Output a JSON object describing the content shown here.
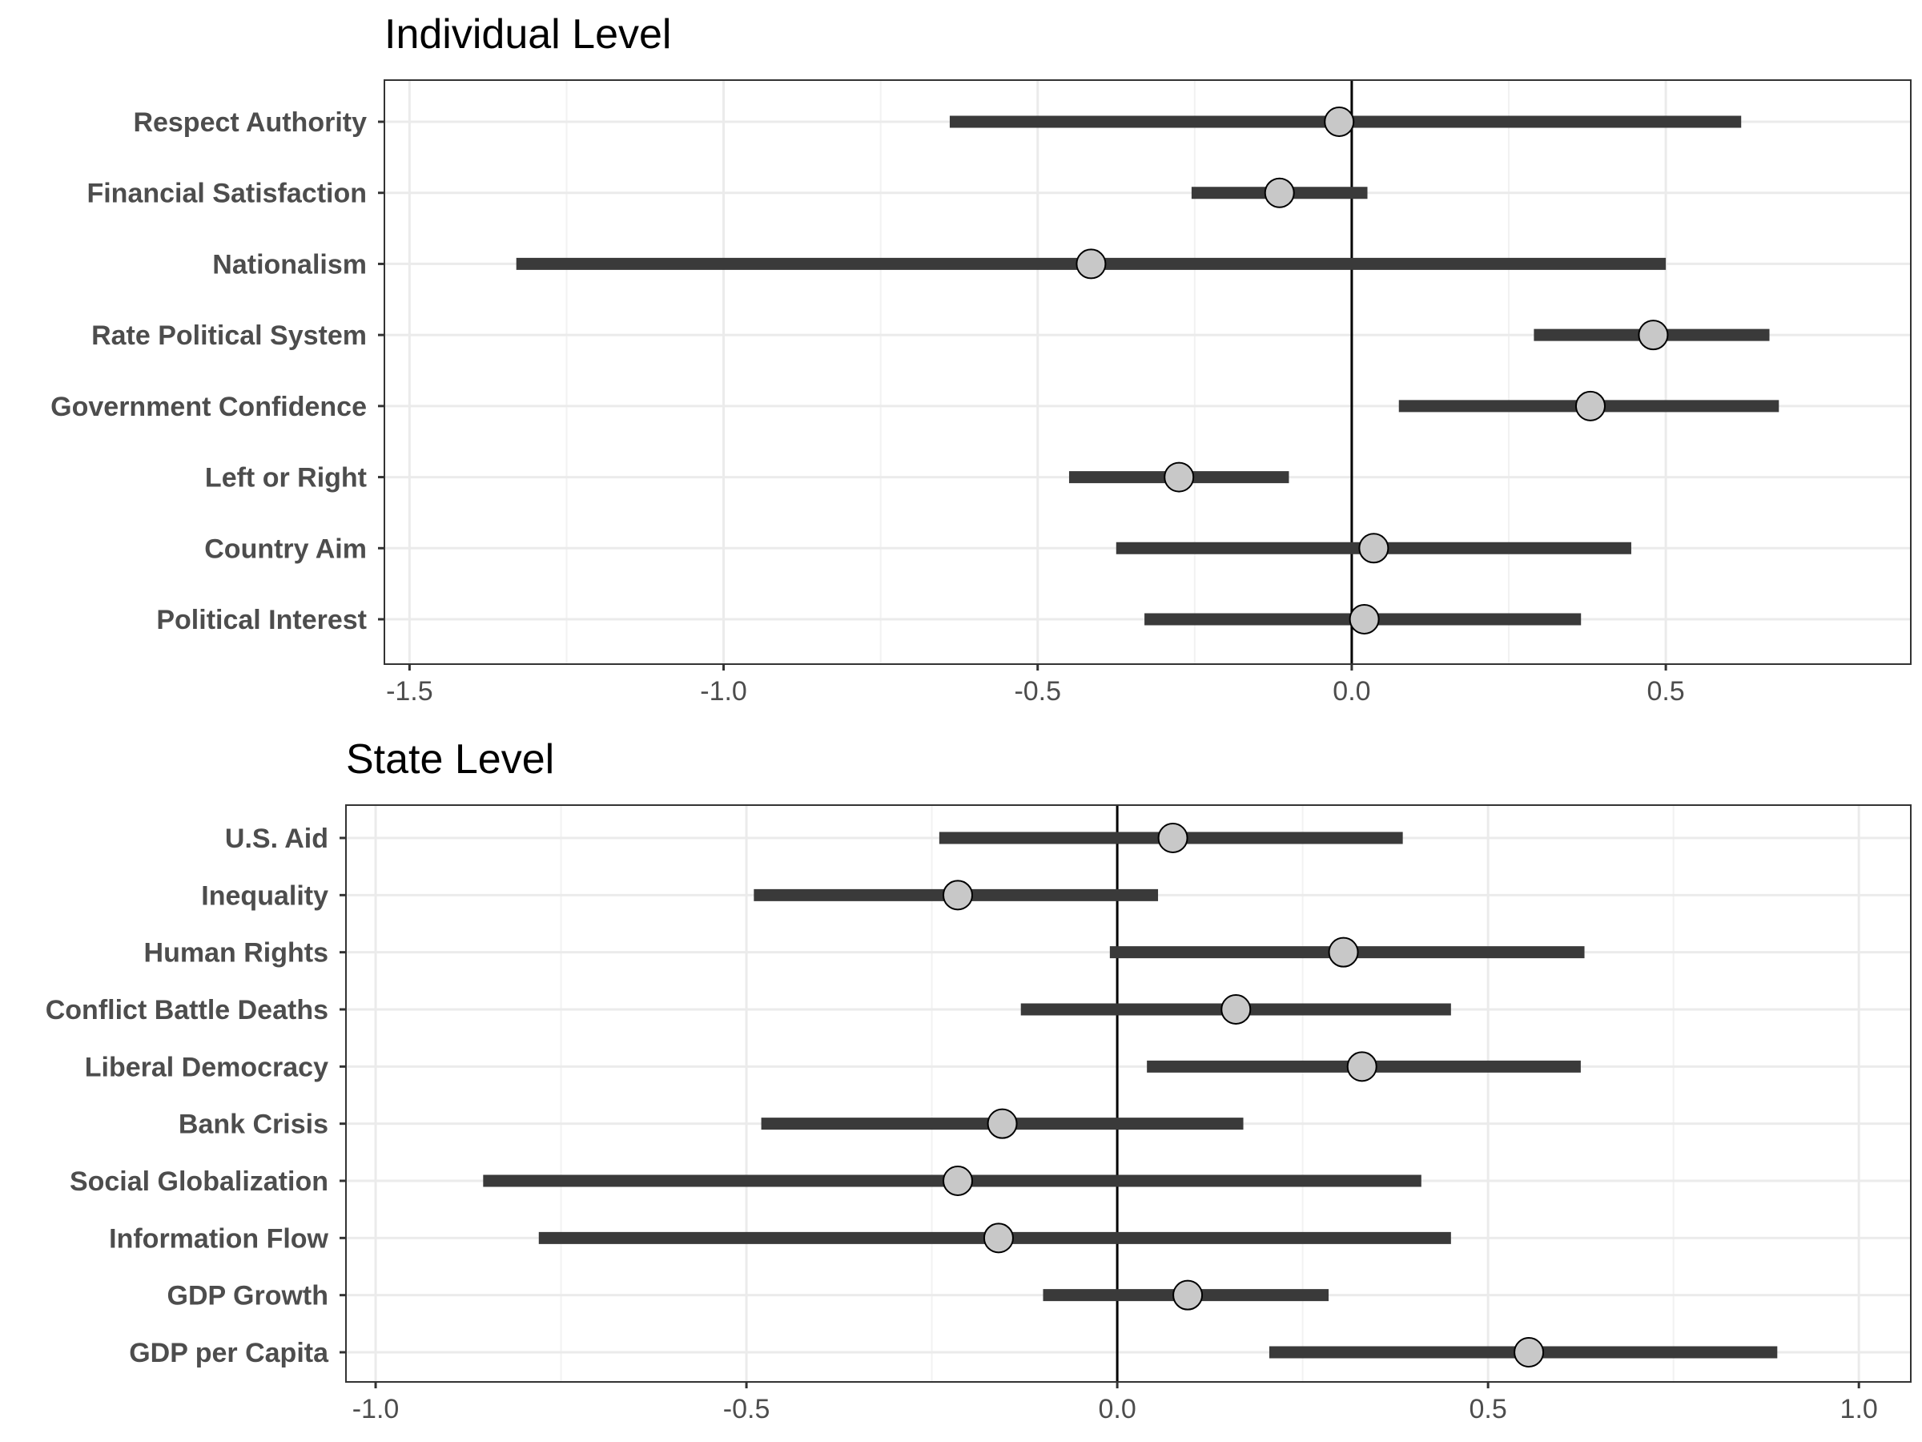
{
  "chart_data": [
    {
      "type": "coefficient-plot",
      "title": "Individual Level",
      "xlabel": "",
      "ylabel": "",
      "xlim": [
        -1.54,
        0.89
      ],
      "x_ticks": [
        -1.5,
        -1.0,
        -0.5,
        0.0,
        0.5
      ],
      "x_tick_labels": [
        "-1.5",
        "-1.0",
        "-0.5",
        "0.0",
        "0.5"
      ],
      "reference_line": 0,
      "grid": true,
      "rows": [
        {
          "label": "Respect Authority",
          "estimate": -0.02,
          "lower": -0.64,
          "upper": 0.62
        },
        {
          "label": "Financial Satisfaction",
          "estimate": -0.115,
          "lower": -0.255,
          "upper": 0.025
        },
        {
          "label": "Nationalism",
          "estimate": -0.415,
          "lower": -1.33,
          "upper": 0.5
        },
        {
          "label": "Rate Political System",
          "estimate": 0.48,
          "lower": 0.29,
          "upper": 0.665
        },
        {
          "label": "Government Confidence",
          "estimate": 0.38,
          "lower": 0.075,
          "upper": 0.68
        },
        {
          "label": "Left or Right",
          "estimate": -0.275,
          "lower": -0.45,
          "upper": -0.1
        },
        {
          "label": "Country Aim",
          "estimate": 0.035,
          "lower": -0.375,
          "upper": 0.445
        },
        {
          "label": "Political Interest",
          "estimate": 0.02,
          "lower": -0.33,
          "upper": 0.365
        }
      ]
    },
    {
      "type": "coefficient-plot",
      "title": "State Level",
      "xlabel": "",
      "ylabel": "",
      "xlim": [
        -1.04,
        1.07
      ],
      "x_ticks": [
        -1.0,
        -0.5,
        0.0,
        0.5,
        1.0
      ],
      "x_tick_labels": [
        "-1.0",
        "-0.5",
        "0.0",
        "0.5",
        "1.0"
      ],
      "reference_line": 0,
      "grid": true,
      "rows": [
        {
          "label": "U.S. Aid",
          "estimate": 0.075,
          "lower": -0.24,
          "upper": 0.385
        },
        {
          "label": "Inequality",
          "estimate": -0.215,
          "lower": -0.49,
          "upper": 0.055
        },
        {
          "label": "Human Rights",
          "estimate": 0.305,
          "lower": -0.01,
          "upper": 0.63
        },
        {
          "label": "Conflict Battle Deaths",
          "estimate": 0.16,
          "lower": -0.13,
          "upper": 0.45
        },
        {
          "label": "Liberal Democracy",
          "estimate": 0.33,
          "lower": 0.04,
          "upper": 0.625
        },
        {
          "label": "Bank Crisis",
          "estimate": -0.155,
          "lower": -0.48,
          "upper": 0.17
        },
        {
          "label": "Social Globalization",
          "estimate": -0.215,
          "lower": -0.855,
          "upper": 0.41
        },
        {
          "label": "Information Flow",
          "estimate": -0.16,
          "lower": -0.78,
          "upper": 0.45
        },
        {
          "label": "GDP Growth",
          "estimate": 0.095,
          "lower": -0.1,
          "upper": 0.285
        },
        {
          "label": "GDP per Capita",
          "estimate": 0.555,
          "lower": 0.205,
          "upper": 0.89
        }
      ]
    }
  ]
}
